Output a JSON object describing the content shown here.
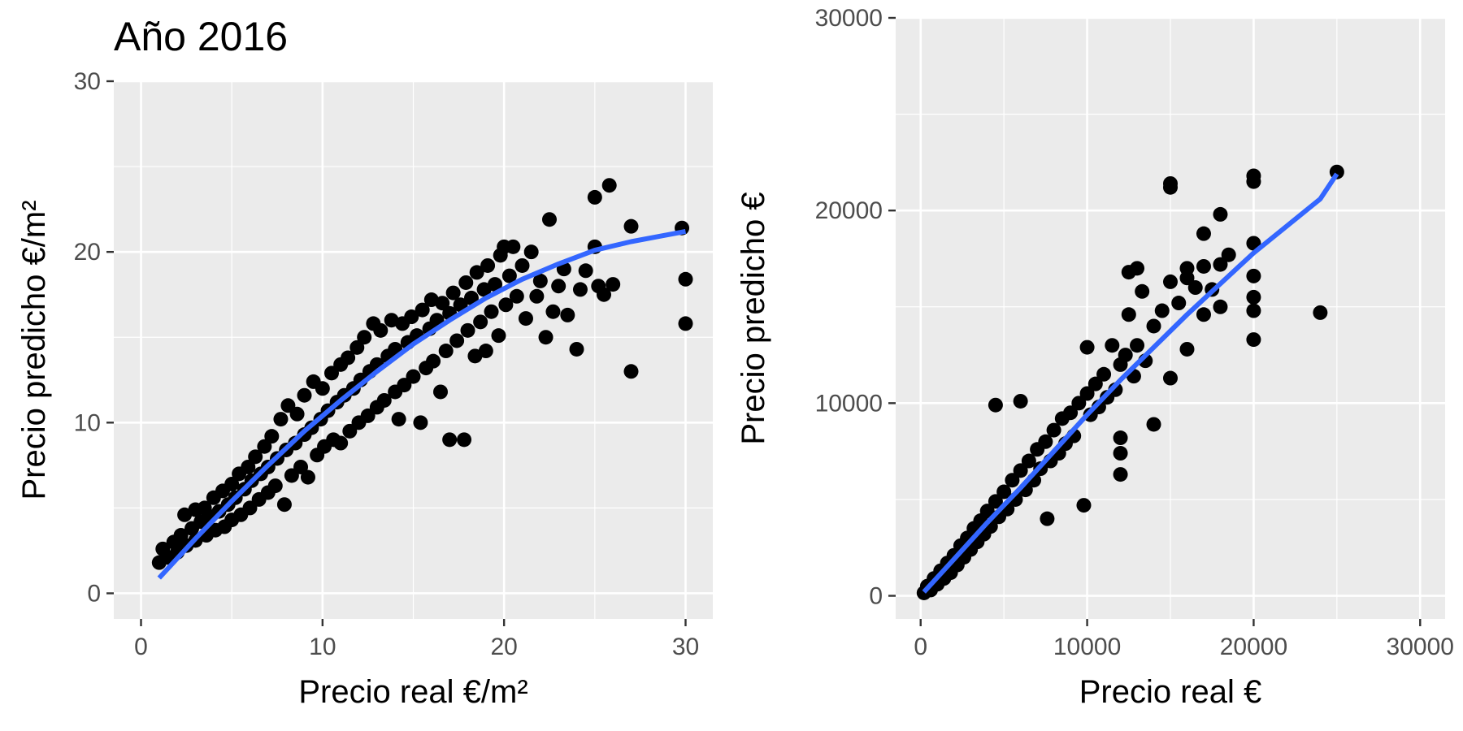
{
  "title": "Año 2016",
  "colors": {
    "panel": "#ebebeb",
    "grid": "#ffffff",
    "point": "#000000",
    "smooth": "#3366ff",
    "tick": "#333333",
    "tick_text": "#4d4d4d"
  },
  "chart_data": [
    {
      "type": "scatter",
      "xlabel": "Precio real  €/m²",
      "ylabel": "Precio predicho €/m²",
      "xlim": [
        -1.5,
        31.5
      ],
      "ylim": [
        -1.5,
        30.0
      ],
      "x_ticks": [
        0,
        10,
        20,
        30
      ],
      "x_tick_labels": [
        "0",
        "10",
        "20",
        "30"
      ],
      "y_ticks": [
        0,
        10,
        20,
        30
      ],
      "y_tick_labels": [
        "0",
        "10",
        "20",
        "30"
      ],
      "grid": true,
      "points": [
        [
          1.0,
          1.8
        ],
        [
          1.2,
          2.6
        ],
        [
          1.5,
          2.1
        ],
        [
          1.8,
          3.0
        ],
        [
          2.0,
          2.4
        ],
        [
          2.2,
          3.4
        ],
        [
          2.4,
          4.6
        ],
        [
          2.5,
          2.8
        ],
        [
          2.8,
          3.8
        ],
        [
          3.0,
          4.9
        ],
        [
          3.0,
          3.1
        ],
        [
          3.3,
          4.2
        ],
        [
          3.5,
          5.0
        ],
        [
          3.6,
          3.4
        ],
        [
          3.8,
          4.5
        ],
        [
          4.0,
          5.6
        ],
        [
          4.1,
          3.7
        ],
        [
          4.3,
          4.8
        ],
        [
          4.5,
          6.0
        ],
        [
          4.6,
          3.9
        ],
        [
          4.8,
          5.2
        ],
        [
          5.0,
          6.4
        ],
        [
          5.0,
          4.3
        ],
        [
          5.2,
          5.6
        ],
        [
          5.4,
          7.0
        ],
        [
          5.5,
          4.6
        ],
        [
          5.7,
          6.1
        ],
        [
          5.9,
          7.4
        ],
        [
          6.0,
          5.0
        ],
        [
          6.1,
          6.6
        ],
        [
          6.3,
          8.0
        ],
        [
          6.5,
          5.5
        ],
        [
          6.6,
          7.0
        ],
        [
          6.8,
          8.6
        ],
        [
          7.0,
          5.9
        ],
        [
          7.0,
          7.4
        ],
        [
          7.2,
          9.2
        ],
        [
          7.4,
          6.3
        ],
        [
          7.5,
          7.9
        ],
        [
          7.7,
          10.2
        ],
        [
          7.9,
          5.2
        ],
        [
          8.0,
          8.4
        ],
        [
          8.1,
          11.0
        ],
        [
          8.3,
          6.9
        ],
        [
          8.5,
          8.8
        ],
        [
          8.6,
          10.5
        ],
        [
          8.8,
          7.4
        ],
        [
          9.0,
          9.3
        ],
        [
          9.0,
          11.6
        ],
        [
          9.2,
          6.8
        ],
        [
          9.4,
          9.7
        ],
        [
          9.5,
          12.4
        ],
        [
          9.7,
          8.1
        ],
        [
          9.9,
          10.2
        ],
        [
          10.0,
          12.0
        ],
        [
          10.1,
          8.6
        ],
        [
          10.3,
          10.7
        ],
        [
          10.5,
          12.9
        ],
        [
          10.6,
          9.0
        ],
        [
          10.8,
          11.2
        ],
        [
          11.0,
          13.4
        ],
        [
          11.0,
          8.8
        ],
        [
          11.2,
          11.6
        ],
        [
          11.4,
          13.8
        ],
        [
          11.5,
          9.5
        ],
        [
          11.7,
          12.0
        ],
        [
          11.9,
          14.4
        ],
        [
          12.0,
          10.0
        ],
        [
          12.1,
          12.5
        ],
        [
          12.3,
          15.0
        ],
        [
          12.5,
          10.4
        ],
        [
          12.6,
          13.0
        ],
        [
          12.8,
          15.8
        ],
        [
          13.0,
          10.9
        ],
        [
          13.0,
          13.4
        ],
        [
          13.2,
          15.4
        ],
        [
          13.4,
          11.3
        ],
        [
          13.6,
          13.9
        ],
        [
          13.8,
          16.0
        ],
        [
          14.0,
          11.8
        ],
        [
          14.0,
          14.3
        ],
        [
          14.2,
          10.2
        ],
        [
          14.4,
          15.8
        ],
        [
          14.5,
          12.2
        ],
        [
          14.7,
          14.7
        ],
        [
          14.9,
          16.2
        ],
        [
          15.0,
          12.7
        ],
        [
          15.2,
          15.1
        ],
        [
          15.4,
          10.0
        ],
        [
          15.5,
          16.6
        ],
        [
          15.7,
          13.2
        ],
        [
          15.9,
          15.5
        ],
        [
          16.0,
          17.2
        ],
        [
          16.1,
          13.6
        ],
        [
          16.3,
          16.0
        ],
        [
          16.5,
          11.8
        ],
        [
          16.6,
          17.0
        ],
        [
          16.8,
          14.2
        ],
        [
          17.0,
          16.4
        ],
        [
          17.0,
          9.0
        ],
        [
          17.2,
          17.6
        ],
        [
          17.4,
          14.8
        ],
        [
          17.6,
          16.9
        ],
        [
          17.8,
          9.0
        ],
        [
          17.9,
          18.2
        ],
        [
          18.0,
          15.4
        ],
        [
          18.2,
          17.3
        ],
        [
          18.4,
          13.9
        ],
        [
          18.5,
          18.8
        ],
        [
          18.7,
          15.9
        ],
        [
          18.9,
          17.8
        ],
        [
          19.0,
          14.2
        ],
        [
          19.1,
          19.2
        ],
        [
          19.3,
          16.5
        ],
        [
          19.5,
          18.1
        ],
        [
          19.7,
          15.1
        ],
        [
          19.8,
          19.8
        ],
        [
          20.0,
          20.3
        ],
        [
          20.1,
          16.9
        ],
        [
          20.3,
          18.6
        ],
        [
          20.5,
          20.3
        ],
        [
          20.7,
          17.4
        ],
        [
          21.0,
          19.2
        ],
        [
          21.2,
          16.1
        ],
        [
          21.5,
          20.0
        ],
        [
          21.8,
          17.4
        ],
        [
          22.0,
          18.3
        ],
        [
          22.3,
          15.0
        ],
        [
          22.5,
          21.9
        ],
        [
          22.7,
          16.5
        ],
        [
          23.0,
          18.0
        ],
        [
          23.3,
          19.0
        ],
        [
          23.5,
          16.3
        ],
        [
          24.0,
          14.3
        ],
        [
          24.2,
          17.8
        ],
        [
          24.5,
          18.9
        ],
        [
          25.0,
          23.2
        ],
        [
          25.0,
          20.3
        ],
        [
          25.2,
          18.0
        ],
        [
          25.5,
          17.5
        ],
        [
          25.8,
          23.9
        ],
        [
          26.0,
          18.1
        ],
        [
          27.0,
          21.5
        ],
        [
          27.0,
          13.0
        ],
        [
          29.8,
          21.4
        ],
        [
          30.0,
          18.4
        ],
        [
          30.0,
          15.8
        ]
      ],
      "smooth": [
        [
          1.0,
          0.9
        ],
        [
          3.0,
          3.2
        ],
        [
          5.0,
          5.4
        ],
        [
          7.0,
          7.5
        ],
        [
          9.0,
          9.5
        ],
        [
          11.0,
          11.3
        ],
        [
          13.0,
          13.0
        ],
        [
          15.0,
          14.6
        ],
        [
          17.0,
          16.0
        ],
        [
          19.0,
          17.3
        ],
        [
          21.0,
          18.4
        ],
        [
          23.0,
          19.3
        ],
        [
          25.0,
          20.1
        ],
        [
          27.0,
          20.6
        ],
        [
          28.5,
          20.9
        ],
        [
          30.0,
          21.2
        ]
      ]
    },
    {
      "type": "scatter",
      "xlabel": "Precio real  €",
      "ylabel": "Precio predicho €",
      "xlim": [
        -1500,
        31500
      ],
      "ylim": [
        -1200,
        30000
      ],
      "x_ticks": [
        0,
        10000,
        20000,
        30000
      ],
      "x_tick_labels": [
        "0",
        "10000",
        "20000",
        "30000"
      ],
      "y_ticks": [
        0,
        10000,
        20000,
        30000
      ],
      "y_tick_labels": [
        "0",
        "10000",
        "20000",
        "30000"
      ],
      "grid": true,
      "points": [
        [
          200,
          150
        ],
        [
          400,
          500
        ],
        [
          600,
          300
        ],
        [
          800,
          900
        ],
        [
          1000,
          600
        ],
        [
          1200,
          1300
        ],
        [
          1400,
          900
        ],
        [
          1600,
          1700
        ],
        [
          1800,
          1200
        ],
        [
          2000,
          2100
        ],
        [
          2200,
          1600
        ],
        [
          2400,
          2600
        ],
        [
          2600,
          2000
        ],
        [
          2800,
          3000
        ],
        [
          3000,
          2400
        ],
        [
          3200,
          3500
        ],
        [
          3400,
          2800
        ],
        [
          3600,
          3900
        ],
        [
          3800,
          3200
        ],
        [
          4000,
          4400
        ],
        [
          4200,
          3600
        ],
        [
          4500,
          4900
        ],
        [
          4500,
          9900
        ],
        [
          4700,
          4100
        ],
        [
          5000,
          5400
        ],
        [
          5200,
          4500
        ],
        [
          5500,
          6000
        ],
        [
          5700,
          5000
        ],
        [
          6000,
          6500
        ],
        [
          6000,
          10100
        ],
        [
          6300,
          5500
        ],
        [
          6500,
          7000
        ],
        [
          6800,
          6000
        ],
        [
          7000,
          7600
        ],
        [
          7200,
          6600
        ],
        [
          7500,
          8000
        ],
        [
          7600,
          4000
        ],
        [
          7800,
          7000
        ],
        [
          8000,
          8600
        ],
        [
          8300,
          7400
        ],
        [
          8500,
          9200
        ],
        [
          8700,
          7900
        ],
        [
          9000,
          9500
        ],
        [
          9200,
          8300
        ],
        [
          9500,
          10000
        ],
        [
          9800,
          4700
        ],
        [
          10000,
          10500
        ],
        [
          10000,
          12900
        ],
        [
          10200,
          9400
        ],
        [
          10500,
          11000
        ],
        [
          10700,
          9800
        ],
        [
          11000,
          11500
        ],
        [
          11200,
          10300
        ],
        [
          11500,
          13000
        ],
        [
          11700,
          10700
        ],
        [
          12000,
          12000
        ],
        [
          12000,
          8200
        ],
        [
          12000,
          6300
        ],
        [
          12000,
          7400
        ],
        [
          12300,
          12500
        ],
        [
          12500,
          16800
        ],
        [
          12500,
          14600
        ],
        [
          12800,
          11400
        ],
        [
          13000,
          13000
        ],
        [
          13000,
          17000
        ],
        [
          13300,
          15800
        ],
        [
          13500,
          12200
        ],
        [
          14000,
          8900
        ],
        [
          14000,
          14000
        ],
        [
          14500,
          14800
        ],
        [
          15000,
          11300
        ],
        [
          15000,
          16300
        ],
        [
          15000,
          21400
        ],
        [
          15000,
          21200
        ],
        [
          15500,
          15200
        ],
        [
          16000,
          12800
        ],
        [
          16000,
          16500
        ],
        [
          16000,
          17000
        ],
        [
          16500,
          16000
        ],
        [
          17000,
          18800
        ],
        [
          17000,
          17100
        ],
        [
          17000,
          14600
        ],
        [
          17500,
          15900
        ],
        [
          18000,
          19800
        ],
        [
          18000,
          17200
        ],
        [
          18000,
          15000
        ],
        [
          18500,
          17700
        ],
        [
          20000,
          21800
        ],
        [
          20000,
          21500
        ],
        [
          20000,
          18300
        ],
        [
          20000,
          16600
        ],
        [
          20000,
          15500
        ],
        [
          20000,
          14800
        ],
        [
          20000,
          13300
        ],
        [
          24000,
          14700
        ],
        [
          25000,
          22000
        ]
      ],
      "smooth": [
        [
          200,
          200
        ],
        [
          2000,
          1900
        ],
        [
          4000,
          3800
        ],
        [
          6000,
          5600
        ],
        [
          8000,
          7500
        ],
        [
          10000,
          9400
        ],
        [
          12000,
          11200
        ],
        [
          14000,
          12900
        ],
        [
          16000,
          14600
        ],
        [
          18000,
          16200
        ],
        [
          20000,
          17800
        ],
        [
          22000,
          19200
        ],
        [
          24000,
          20600
        ],
        [
          25000,
          21900
        ]
      ]
    }
  ]
}
